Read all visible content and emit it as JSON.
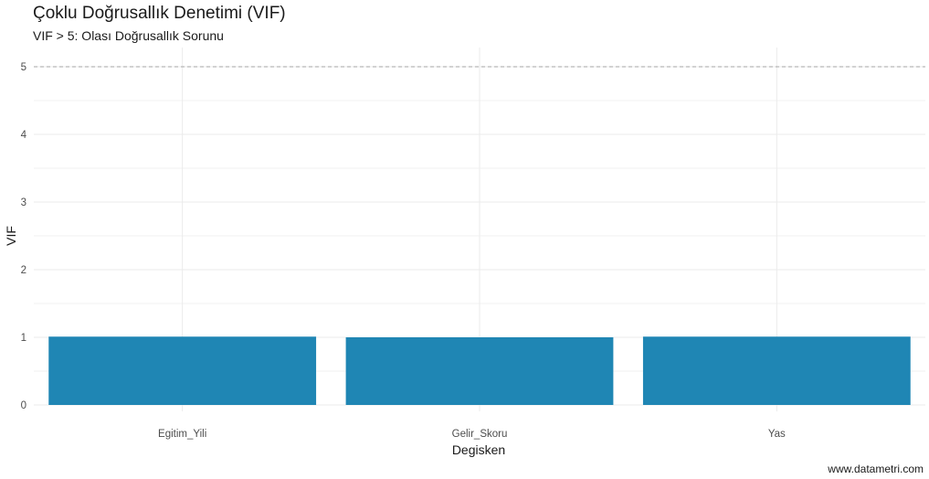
{
  "chart_data": {
    "type": "bar",
    "title": "Çoklu Doğrusallık Denetimi (VIF)",
    "subtitle": "VIF > 5: Olası Doğrusallık Sorunu",
    "caption": "www.datametri.com",
    "xlabel": "Degisken",
    "ylabel": "VIF",
    "categories": [
      "Egitim_Yili",
      "Gelir_Skoru",
      "Yas"
    ],
    "values": [
      1.01,
      1.0,
      1.01
    ],
    "ylim": [
      0,
      5.4
    ],
    "yticks": [
      0,
      1,
      2,
      3,
      4,
      5
    ],
    "reference_line": {
      "value": 5,
      "style": "dashed"
    },
    "grid": true,
    "bar_color": "#1f86b4"
  }
}
